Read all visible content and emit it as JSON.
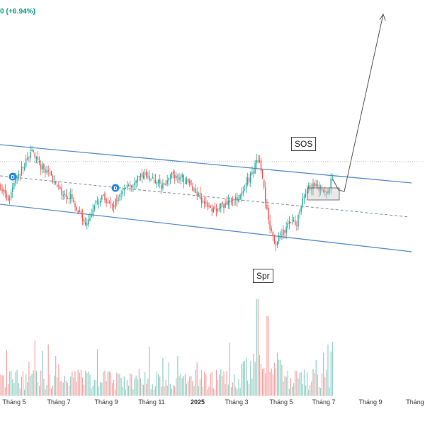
{
  "header": {
    "change_text": "0 (+6.94%)",
    "change_color": "#089981"
  },
  "colors": {
    "up": "#26a69a",
    "down": "#ef5350",
    "channel": "#5b8ec8",
    "volume_up": "#8fd0c4",
    "volume_down": "#f5a3a3"
  },
  "annotations": {
    "sos": "SOS",
    "spring": "Spr"
  },
  "dividend_markers": [
    {
      "label": "D"
    },
    {
      "label": "D"
    }
  ],
  "x_axis": {
    "labels": [
      {
        "text": "Tháng 5",
        "bold": false
      },
      {
        "text": "Tháng 7",
        "bold": false
      },
      {
        "text": "Tháng 9",
        "bold": false
      },
      {
        "text": "Tháng 11",
        "bold": false
      },
      {
        "text": "2025",
        "bold": true
      },
      {
        "text": "Tháng 3",
        "bold": false
      },
      {
        "text": "Tháng 5",
        "bold": false
      },
      {
        "text": "Tháng 7",
        "bold": false
      },
      {
        "text": "Tháng 9",
        "bold": false
      },
      {
        "text": "Tháng",
        "bold": false
      }
    ]
  }
}
